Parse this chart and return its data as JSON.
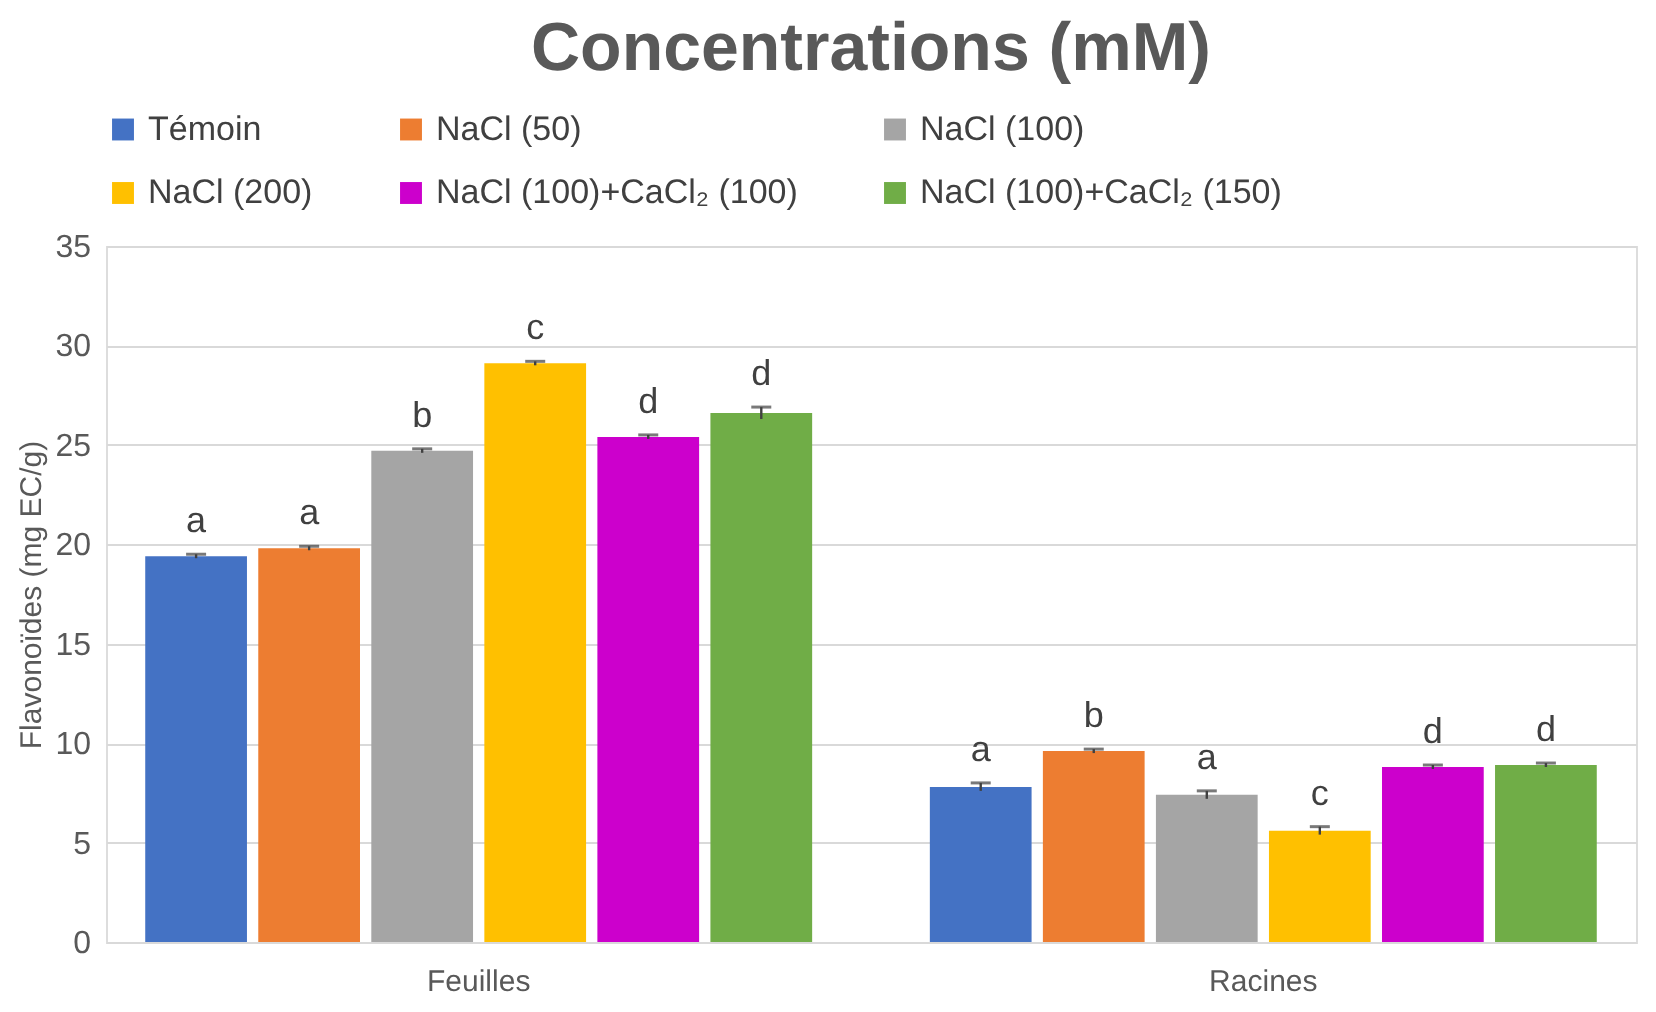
{
  "chart_data": {
    "type": "bar",
    "title": "Concentrations (mM)",
    "ylabel": "Flavonoïdes (mg EC/g)",
    "categories": [
      "Feuilles",
      "Racines"
    ],
    "series": [
      {
        "name": "Témoin",
        "color": "#4472c4",
        "values": [
          19.4,
          7.8
        ],
        "errors": [
          0.1,
          0.2
        ],
        "value_labels": [
          "a",
          "a"
        ]
      },
      {
        "name": "NaCl (50)",
        "color": "#ed7d31",
        "values": [
          19.8,
          9.6
        ],
        "errors": [
          0.1,
          0.1
        ],
        "value_labels": [
          "a",
          "b"
        ]
      },
      {
        "name": "NaCl (100)",
        "color": "#a5a5a5",
        "values": [
          24.7,
          7.4
        ],
        "errors": [
          0.1,
          0.2
        ],
        "value_labels": [
          "b",
          "a"
        ]
      },
      {
        "name": "NaCl (200)",
        "color": "#ffc000",
        "values": [
          29.1,
          5.6
        ],
        "errors": [
          0.1,
          0.2
        ],
        "value_labels": [
          "c",
          "c"
        ]
      },
      {
        "name": "NaCl (100)+CaCl₂ (100)",
        "color": "#cc00cc",
        "values": [
          25.4,
          8.8
        ],
        "errors": [
          0.1,
          0.1
        ],
        "value_labels": [
          "d",
          "d"
        ]
      },
      {
        "name": "NaCl (100)+CaCl₂ (150)",
        "color": "#70ad47",
        "values": [
          26.6,
          8.9
        ],
        "errors": [
          0.3,
          0.1
        ],
        "value_labels": [
          "d",
          "d"
        ]
      }
    ],
    "ylim": [
      0,
      35
    ],
    "yticks": [
      0,
      5,
      10,
      15,
      20,
      25,
      30,
      35
    ],
    "grid": "y",
    "legend": "top"
  }
}
